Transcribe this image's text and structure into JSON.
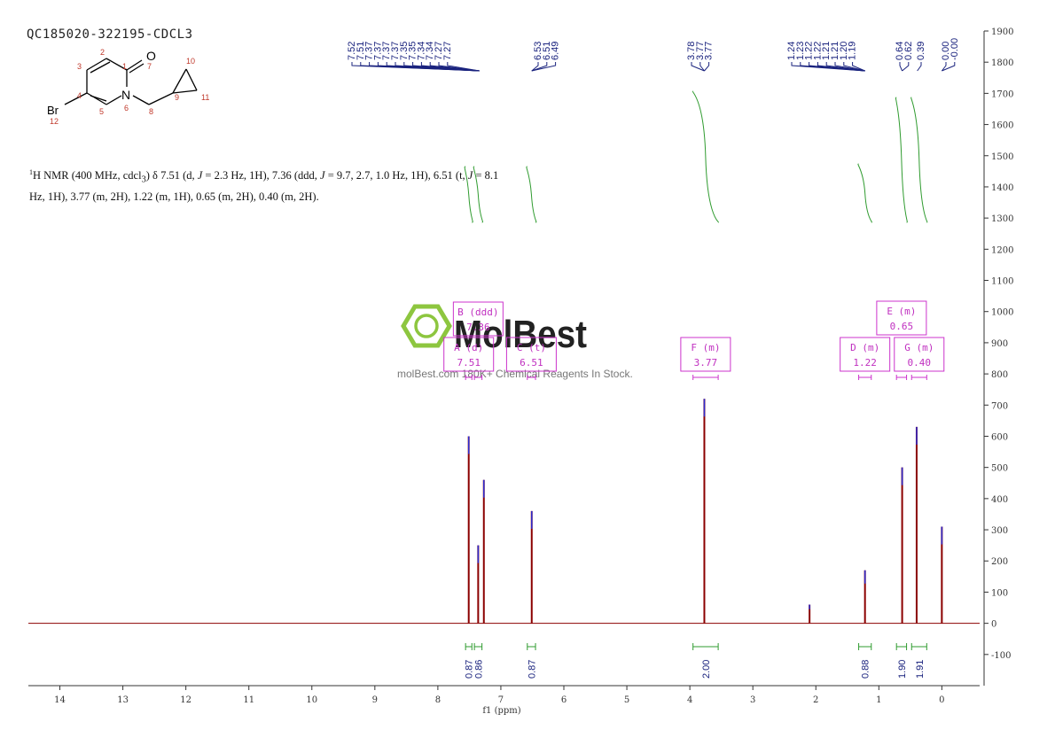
{
  "sample_id": "QC185020-322195-CDCL3",
  "structure": {
    "atoms": {
      "o": "O",
      "n": "N",
      "br": "Br"
    },
    "numbers": [
      "1",
      "2",
      "3",
      "4",
      "5",
      "6",
      "7",
      "8",
      "9",
      "10",
      "11",
      "12"
    ]
  },
  "description": {
    "nucleus_sup": "1",
    "p1": "H NMR (400 MHz, cdcl",
    "p1_sub": "3",
    "p2": ") δ 7.51 (d, ",
    "j1": "J",
    "p3": " = 2.3 Hz, 1H), 7.36 (ddd, ",
    "j2": "J",
    "p4": " = 9.7, 2.7, 1.0 Hz, 1H), 6.51 (t, ",
    "j3": "J",
    "p5": " = 8.1",
    "line2": "Hz, 1H), 3.77 (m, 2H), 1.22 (m, 1H), 0.65 (m, 2H), 0.40 (m, 2H)."
  },
  "watermark": {
    "brand": "MolBest",
    "tagline": "molBest.com 180K+ Chemical Reagents In Stock."
  },
  "colors": {
    "spectrum": "#8b0000",
    "peak_top": "#2b2bd1",
    "integral": "#2f9b2f",
    "label": "#cc33cc",
    "peak_label": "#1a237e",
    "axis": "#333333",
    "brand_green": "#8dc63f"
  },
  "chart_data": {
    "type": "line",
    "xlabel": "f1 (ppm)",
    "x_axis": {
      "range": [
        14.5,
        -0.6
      ],
      "reversed": true,
      "ticks": [
        14,
        13,
        12,
        11,
        10,
        9,
        8,
        7,
        6,
        5,
        4,
        3,
        2,
        1,
        0
      ]
    },
    "y_axis": {
      "range": [
        -200,
        1900
      ],
      "ticks": [
        1900,
        1800,
        1700,
        1600,
        1500,
        1400,
        1300,
        1200,
        1100,
        1000,
        900,
        800,
        700,
        600,
        500,
        400,
        300,
        200,
        100,
        0,
        -100
      ]
    },
    "peaks": [
      {
        "ppm": 7.51,
        "height": 600
      },
      {
        "ppm": 7.36,
        "height": 250
      },
      {
        "ppm": 7.27,
        "height": 460
      },
      {
        "ppm": 6.51,
        "height": 360
      },
      {
        "ppm": 3.77,
        "height": 720
      },
      {
        "ppm": 2.1,
        "height": 60
      },
      {
        "ppm": 1.22,
        "height": 170
      },
      {
        "ppm": 0.63,
        "height": 500
      },
      {
        "ppm": 0.4,
        "height": 630
      },
      {
        "ppm": 0.0,
        "height": 310
      }
    ],
    "peak_label_groups": [
      {
        "labels": [
          "7.52",
          "7.51",
          "7.37",
          "7.37",
          "7.37",
          "7.37",
          "7.35",
          "7.35",
          "7.34",
          "7.34",
          "7.27",
          "7.27"
        ],
        "target": 7.34
      },
      {
        "labels": [
          "6.53",
          "6.51",
          "6.49"
        ],
        "target": 6.51
      },
      {
        "labels": [
          "3.78",
          "3.77",
          "3.77"
        ],
        "target": 3.77
      },
      {
        "labels": [
          "1.24",
          "1.23",
          "1.22",
          "1.22",
          "1.21",
          "1.21",
          "1.20",
          "1.19"
        ],
        "target": 1.22
      },
      {
        "labels": [
          "0.64",
          "0.62"
        ],
        "target": 0.63
      },
      {
        "labels": [
          "0.39"
        ],
        "target": 0.39
      },
      {
        "labels": [
          "0.00",
          "-0.00"
        ],
        "target": 0.0
      }
    ],
    "multiplets": [
      {
        "letter": "A",
        "type": "d",
        "shift": "7.51",
        "range": [
          7.56,
          7.46
        ]
      },
      {
        "letter": "B",
        "type": "ddd",
        "shift": "7.36",
        "range": [
          7.42,
          7.3
        ]
      },
      {
        "letter": "C",
        "type": "t",
        "shift": "6.51",
        "range": [
          6.58,
          6.45
        ]
      },
      {
        "letter": "F",
        "type": "m",
        "shift": "3.77",
        "range": [
          3.95,
          3.55
        ]
      },
      {
        "letter": "D",
        "type": "m",
        "shift": "1.22",
        "range": [
          1.32,
          1.12
        ]
      },
      {
        "letter": "E",
        "type": "m",
        "shift": "0.65",
        "range": [
          0.72,
          0.56
        ]
      },
      {
        "letter": "G",
        "type": "m",
        "shift": "0.40",
        "range": [
          0.48,
          0.24
        ]
      }
    ],
    "integrals": [
      {
        "value": "0.87",
        "range": [
          7.56,
          7.46
        ]
      },
      {
        "value": "0.86",
        "range": [
          7.42,
          7.3
        ]
      },
      {
        "value": "0.87",
        "range": [
          6.58,
          6.45
        ]
      },
      {
        "value": "2.00",
        "range": [
          3.95,
          3.55
        ]
      },
      {
        "value": "0.88",
        "range": [
          1.32,
          1.12
        ]
      },
      {
        "value": "1.90",
        "range": [
          0.72,
          0.56
        ]
      },
      {
        "value": "1.91",
        "range": [
          0.48,
          0.24
        ]
      }
    ]
  }
}
